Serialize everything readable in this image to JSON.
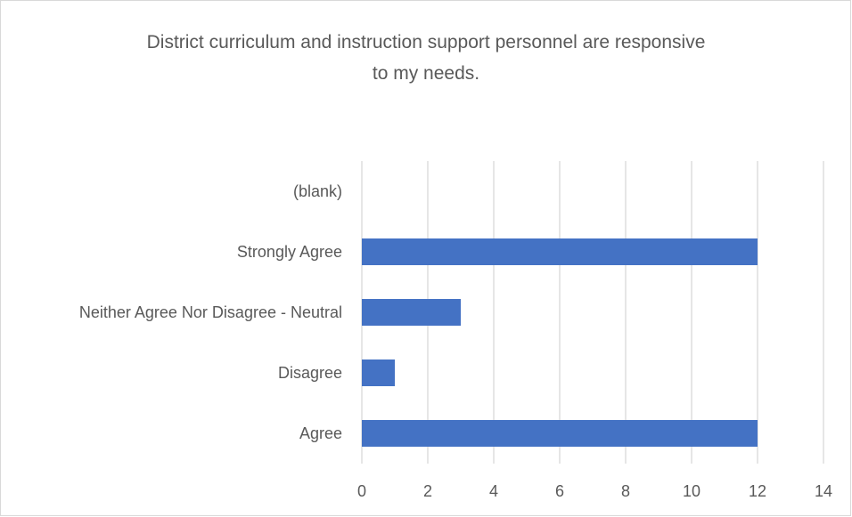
{
  "chart_data": {
    "type": "bar",
    "orientation": "horizontal",
    "title_lines": [
      "District curriculum and instruction support personnel are responsive",
      "to my needs."
    ],
    "categories": [
      "(blank)",
      "Strongly Agree",
      "Neither Agree Nor Disagree - Neutral",
      "Disagree",
      "Agree"
    ],
    "values": [
      null,
      12,
      3,
      1,
      12
    ],
    "xlim": [
      0,
      14
    ],
    "xticks": [
      0,
      2,
      4,
      6,
      8,
      10,
      12,
      14
    ],
    "grid": true,
    "legend": false,
    "bar_color": "#4472c4",
    "grid_color": "#d9d9d9",
    "text_color": "#595959"
  }
}
